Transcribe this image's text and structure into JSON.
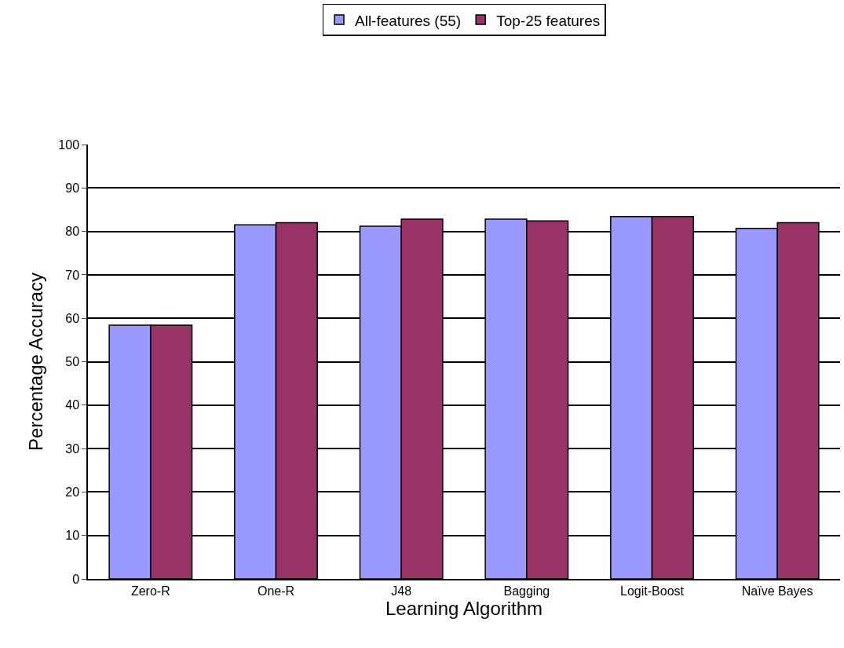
{
  "chart_data": {
    "type": "bar",
    "xlabel": "Learning Algorithm",
    "ylabel": "Percentage Accuracy",
    "categories": [
      "Zero-R",
      "One-R",
      "J48",
      "Bagging",
      "Logit-Boost",
      "Naïve Bayes"
    ],
    "series": [
      {
        "name": "All-features (55)",
        "color": "#9999ff",
        "values": [
          58.4,
          81.5,
          81.2,
          82.8,
          83.4,
          80.7
        ]
      },
      {
        "name": "Top-25 features",
        "color": "#993366",
        "values": [
          58.4,
          82,
          82.8,
          82.4,
          83.4,
          82
        ]
      }
    ],
    "ylim": [
      0,
      100
    ],
    "yticks": [
      0,
      10,
      20,
      30,
      40,
      50,
      60,
      70,
      80,
      90,
      100
    ],
    "grid": "y",
    "legend": "top"
  }
}
